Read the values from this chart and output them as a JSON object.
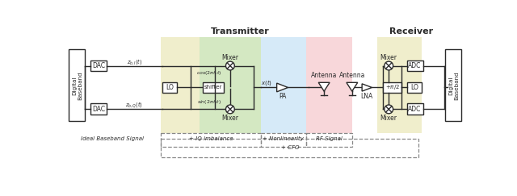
{
  "title_transmitter": "Transmitter",
  "title_receiver": "Receiver",
  "bg_color": "#ffffff",
  "region_yellow_color": "#f0eecc",
  "region_green_color": "#d4e8c2",
  "region_blue_color": "#d6eaf8",
  "region_pink_color": "#f8d7da",
  "region_yellow_rx_color": "#f0eecc",
  "dashed_color": "#888888",
  "line_color": "#2a2a2a",
  "label_iq": "+ IQ imbalance",
  "label_nonlin": "+ Nonlinearity",
  "label_rf": "RF Signal",
  "label_cfo": "+ CFO",
  "label_ideal": "Ideal Baseband Signal"
}
